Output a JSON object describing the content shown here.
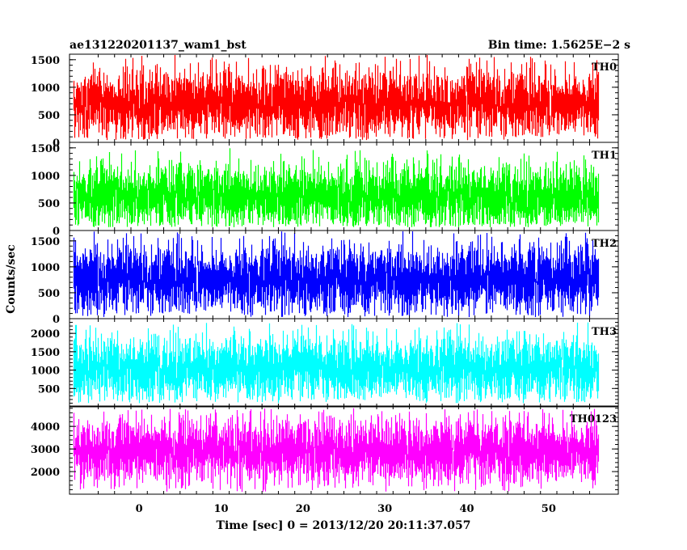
{
  "chart_data": {
    "type": "line",
    "title_left": "ae131220201137_wam1_bst",
    "title_right": "Bin time: 1.5625E−2 s",
    "xlabel": "Time [sec] 0 = 2013/12/20 20:11:37.057",
    "ylabel": "Counts/sec",
    "xlim": [
      -8.5,
      58.5
    ],
    "data_range": [
      -8.0,
      56.0
    ],
    "bin_time": 0.015625,
    "x_ticks": [
      "0",
      "10",
      "20",
      "30",
      "40",
      "50"
    ],
    "panels": [
      {
        "name": "TH0",
        "color": "#ff0000",
        "ylim": [
          0,
          1600
        ],
        "y_ticks": [
          "0",
          "500",
          "1000",
          "1500"
        ],
        "approx_mean": 700,
        "approx_range": [
          40,
          1600
        ]
      },
      {
        "name": "TH1",
        "color": "#00ff00",
        "ylim": [
          0,
          1600
        ],
        "y_ticks": [
          "0",
          "500",
          "1000",
          "1500"
        ],
        "approx_mean": 620,
        "approx_range": [
          60,
          1500
        ]
      },
      {
        "name": "TH2",
        "color": "#0000ff",
        "ylim": [
          0,
          1700
        ],
        "y_ticks": [
          "0",
          "500",
          "1000",
          "1500"
        ],
        "approx_mean": 750,
        "approx_range": [
          30,
          1700
        ]
      },
      {
        "name": "TH3",
        "color": "#00ffff",
        "ylim": [
          0,
          2400
        ],
        "y_ticks": [
          "500",
          "1000",
          "1500",
          "2000"
        ],
        "approx_mean": 1050,
        "approx_range": [
          100,
          2300
        ]
      },
      {
        "name": "TH0123",
        "color": "#ff00ff",
        "ylim": [
          1000,
          4900
        ],
        "y_ticks": [
          "2000",
          "3000",
          "4000"
        ],
        "approx_mean": 2900,
        "approx_range": [
          1100,
          4800
        ]
      }
    ]
  }
}
